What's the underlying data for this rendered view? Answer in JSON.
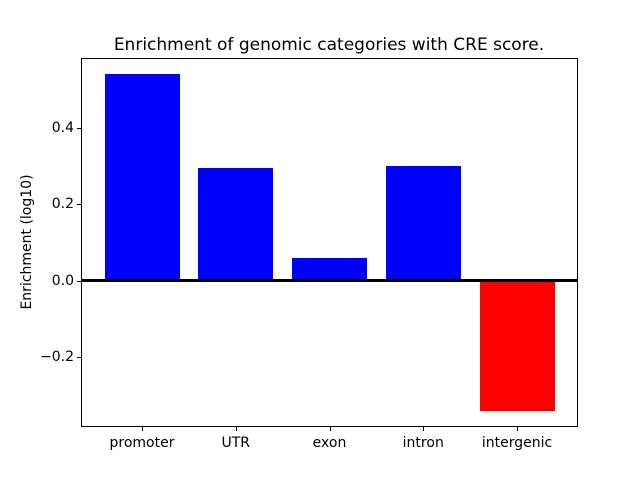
{
  "chart_data": {
    "type": "bar",
    "title": "Enrichment of genomic categories with CRE score.",
    "xlabel": "",
    "ylabel": "Enrichment (log10)",
    "categories": [
      "promoter",
      "UTR",
      "exon",
      "intron",
      "intergenic"
    ],
    "values": [
      0.54,
      0.295,
      0.06,
      0.3,
      -0.34
    ],
    "positive_color": "#0000ff",
    "negative_color": "#ff0000",
    "bar_colors": [
      "#0000ff",
      "#0000ff",
      "#0000ff",
      "#0000ff",
      "#ff0000"
    ],
    "axis_color": "#000000",
    "background_color": "#ffffff",
    "ytick_values": [
      0.4,
      0.2,
      0.0,
      -0.2
    ],
    "ytick_labels": [
      "0.4",
      "0.2",
      "0.0",
      "−0.2"
    ],
    "ylim": [
      -0.38,
      0.58
    ],
    "xlim": [
      -0.64,
      4.64
    ],
    "bar_width": 0.8,
    "zero_line": true,
    "grid": false,
    "legend": null
  }
}
